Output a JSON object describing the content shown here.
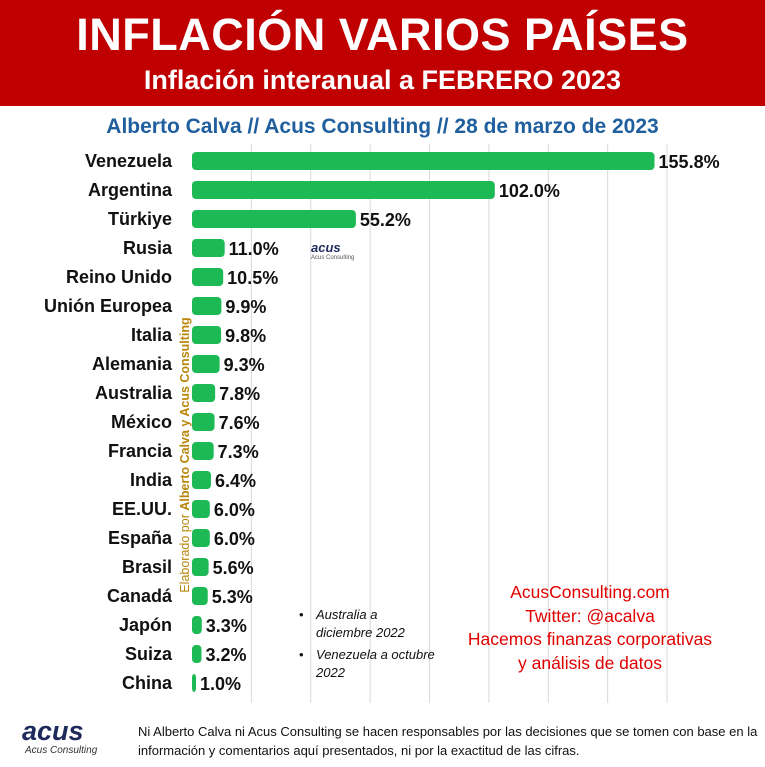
{
  "header": {
    "title": "INFLACIÓN VARIOS PAÍSES",
    "subtitle": "Inflación interanual a FEBRERO 2023"
  },
  "byline": "Alberto Calva // Acus Consulting // 28 de marzo de 2023",
  "chart_data": {
    "type": "bar",
    "orientation": "horizontal",
    "categories": [
      "Venezuela",
      "Argentina",
      "Türkiye",
      "Rusia",
      "Reino Unido",
      "Unión Europea",
      "Italia",
      "Alemania",
      "Australia",
      "México",
      "Francia",
      "India",
      "EE.UU.",
      "España",
      "Brasil",
      "Canadá",
      "Japón",
      "Suiza",
      "China"
    ],
    "values": [
      155.8,
      102.0,
      55.2,
      11.0,
      10.5,
      9.9,
      9.8,
      9.3,
      7.8,
      7.6,
      7.3,
      6.4,
      6.0,
      6.0,
      5.6,
      5.3,
      3.3,
      3.2,
      1.0
    ],
    "value_labels": [
      "155.8%",
      "102.0%",
      "55.2%",
      "11.0%",
      "10.5%",
      "9.9%",
      "9.8%",
      "9.3%",
      "7.8%",
      "7.6%",
      "7.3%",
      "6.4%",
      "6.0%",
      "6.0%",
      "5.6%",
      "5.3%",
      "3.3%",
      "3.2%",
      "1.0%"
    ],
    "xlim": [
      0,
      160
    ],
    "grid": true,
    "bar_color": "#1db954"
  },
  "watermark": {
    "prefix": "Elaborado por ",
    "name": "Alberto Calva y Acus Consulting",
    "color": "#b8860b"
  },
  "mini_logo": {
    "word": "acus",
    "sub": "Acus Consulting"
  },
  "notes": [
    "Australia a diciembre 2022",
    "Venezuela a octubre 2022"
  ],
  "promo": {
    "site": "AcusConsulting.com",
    "twitter": "Twitter: @acalva",
    "line1": "Hacemos finanzas corporativas",
    "line2": "y análisis de datos",
    "color": "#e00000"
  },
  "footer": {
    "logo_word": "acus",
    "logo_sub": "Acus Consulting",
    "disclaimer": "Ni Alberto Calva ni Acus Consulting se hacen responsables por las decisiones que se tomen con base en la información y comentarios aquí presentados, ni por la exactitud de las cifras."
  },
  "colors": {
    "banner": "#c00000",
    "byline": "#1f5f9e",
    "logo": "#1f2a5c"
  }
}
